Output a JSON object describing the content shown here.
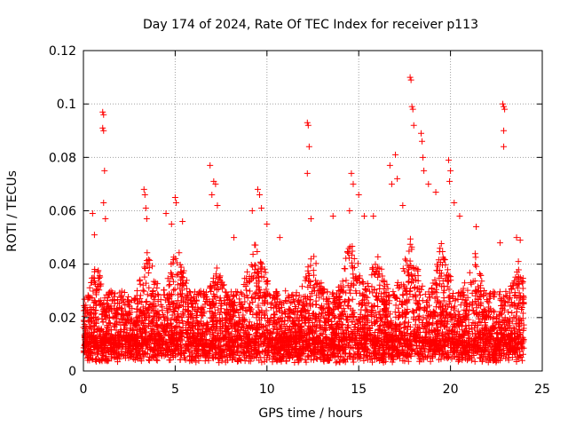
{
  "chart_data": {
    "type": "scatter",
    "title": "Day 174 of 2024, Rate Of TEC Index for receiver p113",
    "xlabel": "GPS time / hours",
    "ylabel": "ROTI / TECUs",
    "xlim": [
      0,
      25
    ],
    "ylim": [
      0,
      0.12
    ],
    "x_ticks": [
      0,
      5,
      10,
      15,
      20,
      25
    ],
    "x_tick_labels": [
      "0",
      "5",
      "10",
      "15",
      "20",
      "25"
    ],
    "y_ticks": [
      0,
      0.02,
      0.04,
      0.06,
      0.08,
      0.1,
      0.12
    ],
    "y_tick_labels": [
      "0",
      "0.02",
      "0.04",
      "0.06",
      "0.08",
      "0.1",
      "0.12"
    ],
    "grid": true,
    "legend": "none",
    "marker": "+",
    "color": "#ff0000",
    "series": [
      {
        "points": [
          [
            1.05,
            0.097
          ],
          [
            1.1,
            0.096
          ],
          [
            1.05,
            0.091
          ],
          [
            1.1,
            0.09
          ],
          [
            1.15,
            0.075
          ],
          [
            1.1,
            0.063
          ],
          [
            1.2,
            0.057
          ],
          [
            0.5,
            0.059
          ],
          [
            0.6,
            0.051
          ],
          [
            3.3,
            0.068
          ],
          [
            3.35,
            0.066
          ],
          [
            3.4,
            0.061
          ],
          [
            3.45,
            0.057
          ],
          [
            4.5,
            0.059
          ],
          [
            4.8,
            0.055
          ],
          [
            5.0,
            0.065
          ],
          [
            5.05,
            0.063
          ],
          [
            5.4,
            0.056
          ],
          [
            6.9,
            0.077
          ],
          [
            7.1,
            0.071
          ],
          [
            7.2,
            0.07
          ],
          [
            7.0,
            0.066
          ],
          [
            7.3,
            0.062
          ],
          [
            8.2,
            0.05
          ],
          [
            9.2,
            0.06
          ],
          [
            9.5,
            0.068
          ],
          [
            9.6,
            0.066
          ],
          [
            9.7,
            0.061
          ],
          [
            10.0,
            0.055
          ],
          [
            10.7,
            0.05
          ],
          [
            12.2,
            0.093
          ],
          [
            12.25,
            0.092
          ],
          [
            12.3,
            0.084
          ],
          [
            12.2,
            0.074
          ],
          [
            12.4,
            0.057
          ],
          [
            13.6,
            0.058
          ],
          [
            14.5,
            0.06
          ],
          [
            14.6,
            0.074
          ],
          [
            14.7,
            0.07
          ],
          [
            15.0,
            0.066
          ],
          [
            15.3,
            0.058
          ],
          [
            15.8,
            0.058
          ],
          [
            16.7,
            0.077
          ],
          [
            16.8,
            0.07
          ],
          [
            17.0,
            0.081
          ],
          [
            17.1,
            0.072
          ],
          [
            17.4,
            0.062
          ],
          [
            17.8,
            0.11
          ],
          [
            17.85,
            0.109
          ],
          [
            17.9,
            0.099
          ],
          [
            17.95,
            0.098
          ],
          [
            18.0,
            0.092
          ],
          [
            18.4,
            0.089
          ],
          [
            18.45,
            0.086
          ],
          [
            18.5,
            0.08
          ],
          [
            18.55,
            0.075
          ],
          [
            18.8,
            0.07
          ],
          [
            19.2,
            0.067
          ],
          [
            19.9,
            0.079
          ],
          [
            20.0,
            0.075
          ],
          [
            19.95,
            0.071
          ],
          [
            20.2,
            0.063
          ],
          [
            20.5,
            0.058
          ],
          [
            21.4,
            0.054
          ],
          [
            22.7,
            0.048
          ],
          [
            22.85,
            0.1
          ],
          [
            22.9,
            0.099
          ],
          [
            22.95,
            0.098
          ],
          [
            22.9,
            0.09
          ],
          [
            22.9,
            0.084
          ],
          [
            23.6,
            0.05
          ],
          [
            23.8,
            0.049
          ],
          [
            23.7,
            0.041
          ]
        ],
        "dense_band": {
          "description_free": true,
          "x_range": [
            0,
            24
          ],
          "y_floor": [
            0.003,
            0.012
          ],
          "y_typical_top": [
            0.025,
            0.05
          ]
        }
      }
    ]
  }
}
